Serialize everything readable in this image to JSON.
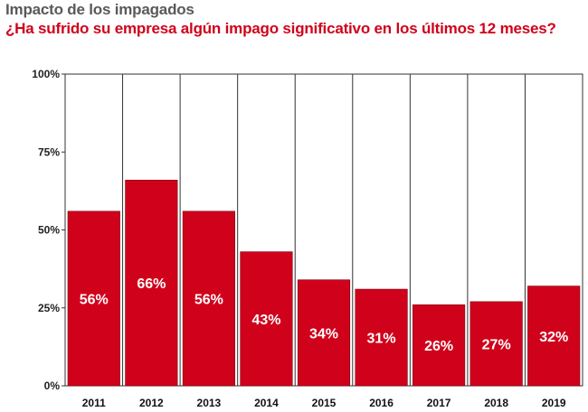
{
  "chart_data": {
    "type": "bar",
    "title": "Impacto de los impagados",
    "subtitle": "¿Ha sufrido su empresa algún impago significativo en los últimos 12 meses?",
    "categories": [
      "2011",
      "2012",
      "2013",
      "2014",
      "2015",
      "2016",
      "2017",
      "2018",
      "2019"
    ],
    "values": [
      56,
      66,
      56,
      43,
      34,
      31,
      26,
      27,
      32
    ],
    "data_labels": [
      "56%",
      "66%",
      "56%",
      "43%",
      "34%",
      "31%",
      "26%",
      "27%",
      "32%"
    ],
    "ylim": [
      0,
      100
    ],
    "yticks": [
      0,
      25,
      50,
      75,
      100
    ],
    "ytick_labels": [
      "0%",
      "25%",
      "50%",
      "75%",
      "100%"
    ],
    "grid": "vertical",
    "legend": "none",
    "colors": {
      "bar": "#d0021b",
      "subtitle": "#d0021b",
      "title": "#595959"
    }
  }
}
